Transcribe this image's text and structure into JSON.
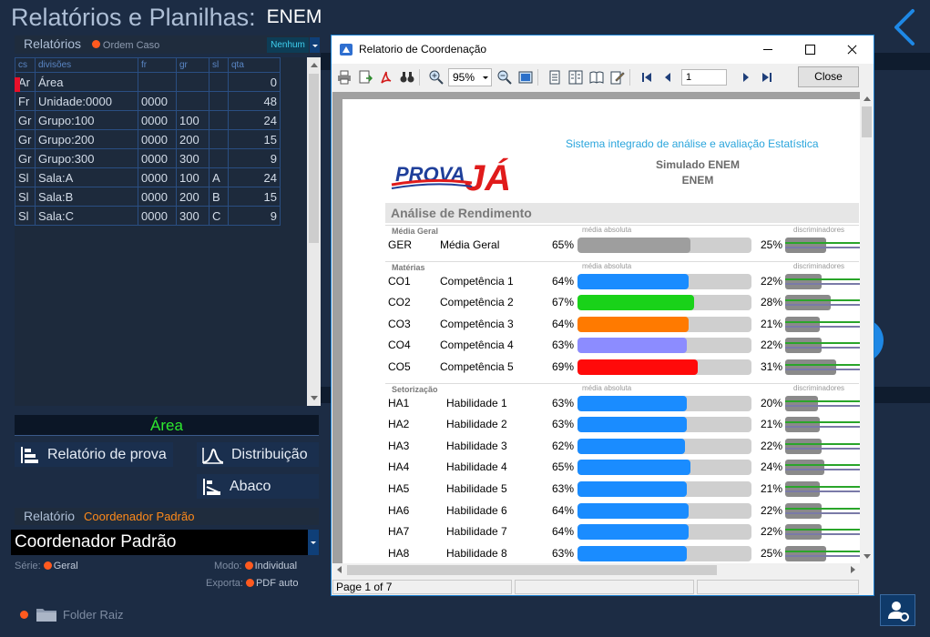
{
  "app": {
    "title": "Relatórios e Planilhas:",
    "subtitle": "ENEM"
  },
  "left_panel": {
    "header_label": "Relatórios",
    "order_label": "Ordem Caso",
    "filter_value": "Nenhum",
    "columns": [
      "cs",
      "divisões",
      "fr",
      "gr",
      "sl",
      "qta"
    ],
    "rows": [
      {
        "cs": "Ar",
        "div": "Área",
        "fr": "",
        "gr": "",
        "sl": "",
        "qta": "0"
      },
      {
        "cs": "Fr",
        "div": "Unidade:0000",
        "fr": "0000",
        "gr": "",
        "sl": "",
        "qta": "48"
      },
      {
        "cs": "Gr",
        "div": "Grupo:100",
        "fr": "0000",
        "gr": "100",
        "sl": "",
        "qta": "24"
      },
      {
        "cs": "Gr",
        "div": "Grupo:200",
        "fr": "0000",
        "gr": "200",
        "sl": "",
        "qta": "15"
      },
      {
        "cs": "Gr",
        "div": "Grupo:300",
        "fr": "0000",
        "gr": "300",
        "sl": "",
        "qta": "9"
      },
      {
        "cs": "Sl",
        "div": "Sala:A",
        "fr": "0000",
        "gr": "100",
        "sl": "A",
        "qta": "24"
      },
      {
        "cs": "Sl",
        "div": "Sala:B",
        "fr": "0000",
        "gr": "200",
        "sl": "B",
        "qta": "15"
      },
      {
        "cs": "Sl",
        "div": "Sala:C",
        "fr": "0000",
        "gr": "300",
        "sl": "C",
        "qta": "9"
      }
    ],
    "area_label": "Área",
    "buttons": {
      "relatorio_prova": "Relatório de prova",
      "distribuicao": "Distribuição",
      "abaco": "Abaco"
    },
    "relatorio_label": "Relatório",
    "relatorio_preset": "Coordenador Padrão",
    "relatorio_value": "Coordenador Padrão",
    "serie_label": "Série:",
    "serie_value": "Geral",
    "modo_label": "Modo:",
    "modo_value": "Individual",
    "exporta_label": "Exporta:",
    "exporta_value": "PDF auto",
    "folder_label": "Folder Raiz"
  },
  "report_window": {
    "title": "Relatorio de Coordenação",
    "zoom": "95%",
    "page_input": "1",
    "close_label": "Close",
    "status_page": "Page 1 of 7"
  },
  "report": {
    "system_title": "Sistema integrado de análise e avaliação Estatística",
    "sim_title": "Simulado ENEM",
    "sim_sub": "ENEM",
    "logo_text_1": "PROVA",
    "logo_text_2": "JÁ",
    "section_title": "Análise de Rendimento",
    "col_media": "média absoluta",
    "col_disc": "discriminadores",
    "groups": [
      {
        "name": "Média Geral",
        "rows": [
          {
            "code": "GER",
            "name": "Média Geral",
            "pct": "65%",
            "fill": 0.65,
            "color": "#9e9e9e",
            "disc": "25%",
            "disc_frac": 0.25
          }
        ]
      },
      {
        "name": "Matérias",
        "rows": [
          {
            "code": "CO1",
            "name": "Competência 1",
            "pct": "64%",
            "fill": 0.64,
            "color": "#1a8cff",
            "disc": "22%",
            "disc_frac": 0.22
          },
          {
            "code": "CO2",
            "name": "Competência 2",
            "pct": "67%",
            "fill": 0.67,
            "color": "#19d219",
            "disc": "28%",
            "disc_frac": 0.28
          },
          {
            "code": "CO3",
            "name": "Competência 3",
            "pct": "64%",
            "fill": 0.64,
            "color": "#ff7a00",
            "disc": "21%",
            "disc_frac": 0.21
          },
          {
            "code": "CO4",
            "name": "Competência 4",
            "pct": "63%",
            "fill": 0.63,
            "color": "#8c8cff",
            "disc": "22%",
            "disc_frac": 0.22
          },
          {
            "code": "CO5",
            "name": "Competência 5",
            "pct": "69%",
            "fill": 0.69,
            "color": "#ff0a0a",
            "disc": "31%",
            "disc_frac": 0.31
          }
        ]
      },
      {
        "name": "Setorização",
        "rows": [
          {
            "code": "HA1",
            "name": "Habilidade 1",
            "pct": "63%",
            "fill": 0.63,
            "color": "#1a8cff",
            "disc": "20%",
            "disc_frac": 0.2
          },
          {
            "code": "HA2",
            "name": "Habilidade 2",
            "pct": "63%",
            "fill": 0.63,
            "color": "#1a8cff",
            "disc": "21%",
            "disc_frac": 0.21
          },
          {
            "code": "HA3",
            "name": "Habilidade 3",
            "pct": "62%",
            "fill": 0.62,
            "color": "#1a8cff",
            "disc": "22%",
            "disc_frac": 0.22
          },
          {
            "code": "HA4",
            "name": "Habilidade 4",
            "pct": "65%",
            "fill": 0.65,
            "color": "#1a8cff",
            "disc": "24%",
            "disc_frac": 0.24
          },
          {
            "code": "HA5",
            "name": "Habilidade 5",
            "pct": "63%",
            "fill": 0.63,
            "color": "#1a8cff",
            "disc": "21%",
            "disc_frac": 0.21
          },
          {
            "code": "HA6",
            "name": "Habilidade 6",
            "pct": "64%",
            "fill": 0.64,
            "color": "#1a8cff",
            "disc": "22%",
            "disc_frac": 0.22
          },
          {
            "code": "HA7",
            "name": "Habilidade 7",
            "pct": "64%",
            "fill": 0.64,
            "color": "#1a8cff",
            "disc": "22%",
            "disc_frac": 0.22
          },
          {
            "code": "HA8",
            "name": "Habilidade 8",
            "pct": "63%",
            "fill": 0.63,
            "color": "#1a8cff",
            "disc": "25%",
            "disc_frac": 0.25
          }
        ]
      }
    ]
  }
}
